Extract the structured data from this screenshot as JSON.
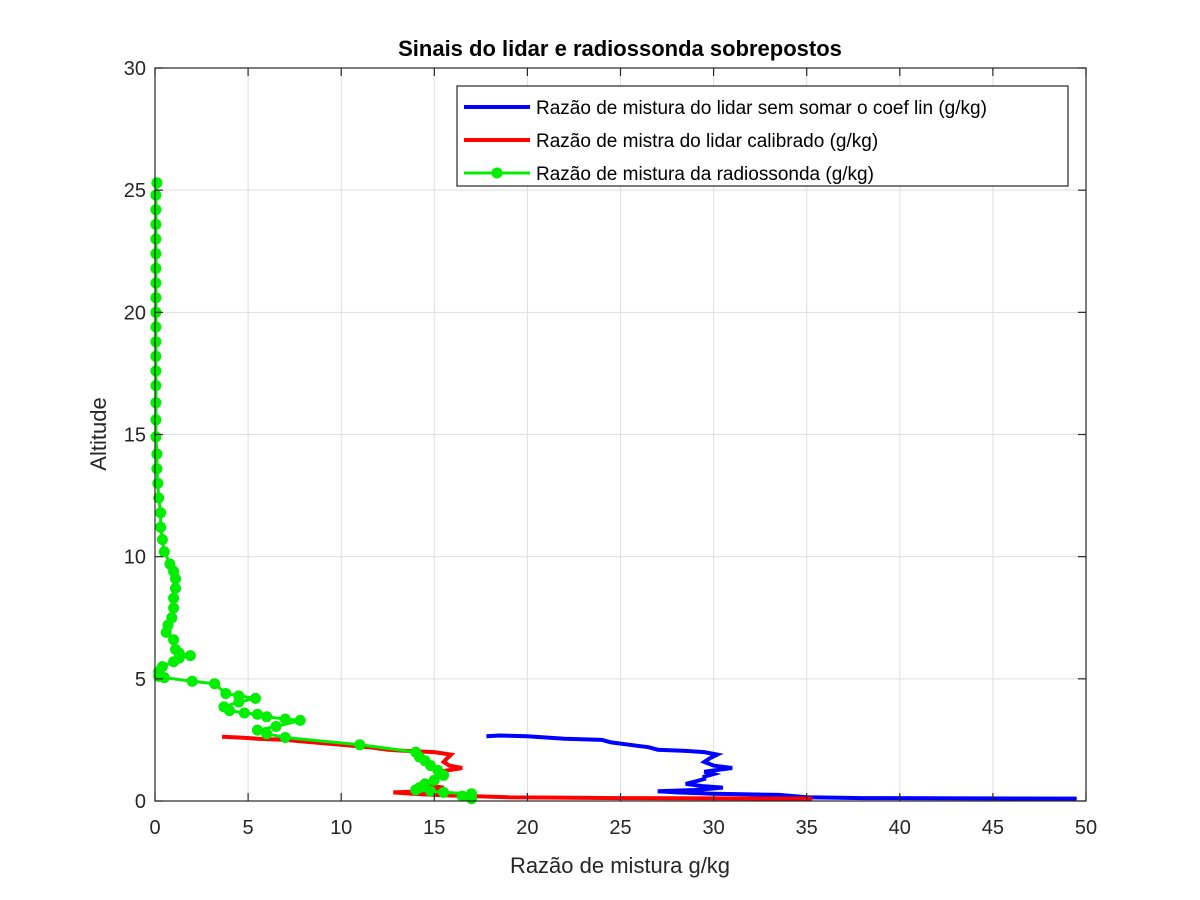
{
  "chart_data": {
    "type": "line",
    "title": "Sinais do lidar e radiossonda sobrepostos",
    "xlabel": "Razão de mistura g/kg",
    "ylabel": "Altitude",
    "xlim": [
      0,
      50
    ],
    "ylim": [
      0,
      30
    ],
    "xticks": [
      0,
      5,
      10,
      15,
      20,
      25,
      30,
      35,
      40,
      45,
      50
    ],
    "yticks": [
      0,
      5,
      10,
      15,
      20,
      25,
      30
    ],
    "xtick_labels": [
      "0",
      "5",
      "10",
      "15",
      "20",
      "25",
      "30",
      "35",
      "40",
      "45",
      "50"
    ],
    "ytick_labels": [
      "0",
      "5",
      "10",
      "15",
      "20",
      "25",
      "30"
    ],
    "grid": true,
    "legend_position": "top-right",
    "series": [
      {
        "name": "Razão de mistura do lidar sem somar o coef lin (g/kg)",
        "color": "#0000ff",
        "marker": "none",
        "points": [
          [
            49.5,
            0.1
          ],
          [
            38,
            0.12
          ],
          [
            35,
            0.15
          ],
          [
            33.5,
            0.25
          ],
          [
            30,
            0.3
          ],
          [
            28,
            0.35
          ],
          [
            27,
            0.4
          ],
          [
            29,
            0.45
          ],
          [
            30.5,
            0.55
          ],
          [
            29.5,
            0.6
          ],
          [
            28.5,
            0.7
          ],
          [
            29,
            0.8
          ],
          [
            29.5,
            0.9
          ],
          [
            29.5,
            1.0
          ],
          [
            30,
            1.1
          ],
          [
            29.5,
            1.2
          ],
          [
            31,
            1.35
          ],
          [
            30,
            1.45
          ],
          [
            29.5,
            1.6
          ],
          [
            29.8,
            1.75
          ],
          [
            30.2,
            1.9
          ],
          [
            29.5,
            2.0
          ],
          [
            28.5,
            2.05
          ],
          [
            27,
            2.1
          ],
          [
            26.5,
            2.2
          ],
          [
            25.5,
            2.3
          ],
          [
            24.5,
            2.4
          ],
          [
            24,
            2.5
          ],
          [
            22,
            2.55
          ],
          [
            21,
            2.6
          ],
          [
            20,
            2.65
          ],
          [
            18.5,
            2.68
          ],
          [
            17.8,
            2.65
          ]
        ]
      },
      {
        "name": "Razão de mistra do lidar calibrado (g/kg)",
        "color": "#ff0000",
        "marker": "none",
        "points": [
          [
            35.3,
            0.1
          ],
          [
            25,
            0.12
          ],
          [
            19,
            0.15
          ],
          [
            17,
            0.2
          ],
          [
            15,
            0.25
          ],
          [
            13.8,
            0.3
          ],
          [
            12.8,
            0.35
          ],
          [
            14.5,
            0.4
          ],
          [
            15.5,
            0.55
          ],
          [
            15,
            0.6
          ],
          [
            14.3,
            0.7
          ],
          [
            14.8,
            0.8
          ],
          [
            15,
            0.9
          ],
          [
            15.2,
            1.0
          ],
          [
            15.5,
            1.1
          ],
          [
            15.3,
            1.2
          ],
          [
            16.5,
            1.35
          ],
          [
            15.8,
            1.45
          ],
          [
            15.5,
            1.6
          ],
          [
            15.7,
            1.75
          ],
          [
            15.9,
            1.9
          ],
          [
            15,
            2.0
          ],
          [
            13.5,
            2.05
          ],
          [
            12.5,
            2.1
          ],
          [
            11.5,
            2.2
          ],
          [
            10,
            2.3
          ],
          [
            8.5,
            2.4
          ],
          [
            7,
            2.5
          ],
          [
            5.5,
            2.55
          ],
          [
            4.5,
            2.6
          ],
          [
            3.6,
            2.63
          ]
        ]
      },
      {
        "name": "Razão de mistura da radiossonda (g/kg)",
        "color": "#00ee00",
        "marker": "circle",
        "points": [
          [
            17,
            0.1
          ],
          [
            16.5,
            0.2
          ],
          [
            17,
            0.3
          ],
          [
            15.5,
            0.35
          ],
          [
            14.8,
            0.4
          ],
          [
            14,
            0.45
          ],
          [
            14.2,
            0.55
          ],
          [
            14.5,
            0.7
          ],
          [
            15,
            0.85
          ],
          [
            15.5,
            1.05
          ],
          [
            15.2,
            1.25
          ],
          [
            14.8,
            1.45
          ],
          [
            14.5,
            1.65
          ],
          [
            14.2,
            1.8
          ],
          [
            14,
            2.0
          ],
          [
            11,
            2.3
          ],
          [
            7,
            2.6
          ],
          [
            6,
            2.75
          ],
          [
            5.5,
            2.9
          ],
          [
            6.5,
            3.05
          ],
          [
            7.8,
            3.3
          ],
          [
            7,
            3.35
          ],
          [
            6,
            3.45
          ],
          [
            5.5,
            3.55
          ],
          [
            4.8,
            3.6
          ],
          [
            4,
            3.7
          ],
          [
            3.7,
            3.85
          ],
          [
            4.5,
            4.05
          ],
          [
            5.4,
            4.2
          ],
          [
            4.5,
            4.3
          ],
          [
            3.8,
            4.4
          ],
          [
            3.2,
            4.8
          ],
          [
            2,
            4.9
          ],
          [
            0.5,
            5.05
          ],
          [
            0.2,
            5.1
          ],
          [
            0.2,
            5.3
          ],
          [
            0.4,
            5.5
          ],
          [
            1,
            5.7
          ],
          [
            1.3,
            5.85
          ],
          [
            1.9,
            5.95
          ],
          [
            1.3,
            6.05
          ],
          [
            1.1,
            6.2
          ],
          [
            1.0,
            6.6
          ],
          [
            0.6,
            6.9
          ],
          [
            0.7,
            7.2
          ],
          [
            0.9,
            7.5
          ],
          [
            1.0,
            7.9
          ],
          [
            1.0,
            8.3
          ],
          [
            1.1,
            8.7
          ],
          [
            1.1,
            9.1
          ],
          [
            1.0,
            9.4
          ],
          [
            0.8,
            9.7
          ],
          [
            0.5,
            10.2
          ],
          [
            0.4,
            10.7
          ],
          [
            0.3,
            11.2
          ],
          [
            0.3,
            11.8
          ],
          [
            0.2,
            12.4
          ],
          [
            0.15,
            13.0
          ],
          [
            0.1,
            13.6
          ],
          [
            0.1,
            14.2
          ],
          [
            0.05,
            14.9
          ],
          [
            0.05,
            15.6
          ],
          [
            0.05,
            16.3
          ],
          [
            0.05,
            17.0
          ],
          [
            0.05,
            17.6
          ],
          [
            0.05,
            18.2
          ],
          [
            0.05,
            18.8
          ],
          [
            0.05,
            19.4
          ],
          [
            0.05,
            20.0
          ],
          [
            0.05,
            20.6
          ],
          [
            0.05,
            21.2
          ],
          [
            0.05,
            21.8
          ],
          [
            0.05,
            22.4
          ],
          [
            0.05,
            23.0
          ],
          [
            0.05,
            23.6
          ],
          [
            0.05,
            24.2
          ],
          [
            0.05,
            24.8
          ],
          [
            0.1,
            25.3
          ]
        ]
      }
    ]
  }
}
